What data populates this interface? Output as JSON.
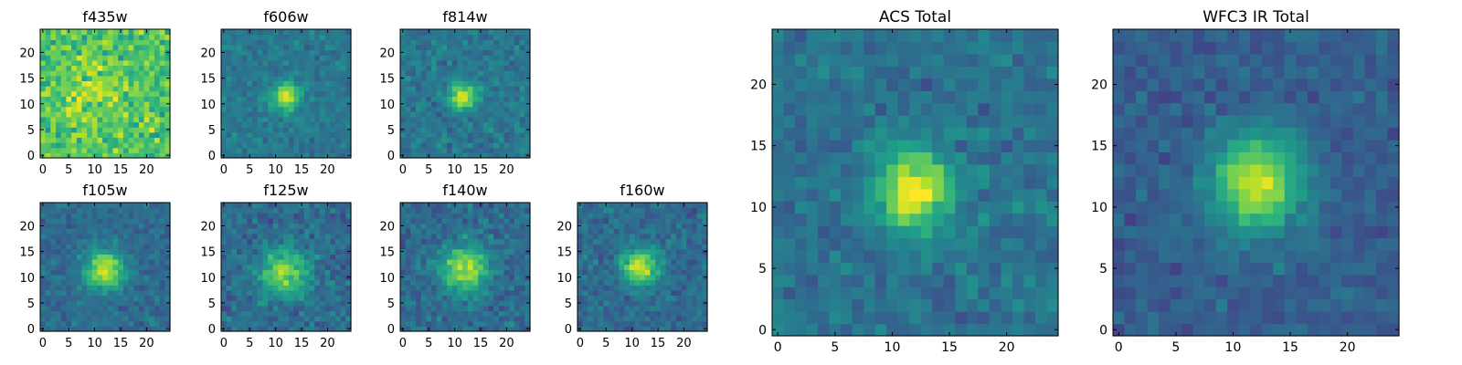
{
  "chart_data": [
    {
      "type": "heatmap",
      "title": "f435w",
      "grid": [
        25,
        25
      ],
      "xlim": [
        -0.5,
        24.5
      ],
      "ylim": [
        -0.5,
        24.5
      ],
      "xticks": [
        0,
        5,
        10,
        15,
        20
      ],
      "yticks": [
        0,
        5,
        10,
        15,
        20
      ],
      "model": {
        "center": [
          11,
          12
        ],
        "sigma": 4,
        "peak": 0.15,
        "background": 0.72,
        "noise": 0.13
      },
      "colormap": "viridis"
    },
    {
      "type": "heatmap",
      "title": "f606w",
      "grid": [
        25,
        25
      ],
      "xlim": [
        -0.5,
        24.5
      ],
      "ylim": [
        -0.5,
        24.5
      ],
      "xticks": [
        0,
        5,
        10,
        15,
        20
      ],
      "yticks": [
        0,
        5,
        10,
        15,
        20
      ],
      "model": {
        "center": [
          12,
          11.5
        ],
        "sigma": 1.8,
        "peak": 0.55,
        "background": 0.4,
        "noise": 0.07
      },
      "colormap": "viridis"
    },
    {
      "type": "heatmap",
      "title": "f814w",
      "grid": [
        25,
        25
      ],
      "xlim": [
        -0.5,
        24.5
      ],
      "ylim": [
        -0.5,
        24.5
      ],
      "xticks": [
        0,
        5,
        10,
        15,
        20
      ],
      "yticks": [
        0,
        5,
        10,
        15,
        20
      ],
      "model": {
        "center": [
          11.5,
          11.5
        ],
        "sigma": 1.8,
        "peak": 0.55,
        "background": 0.4,
        "noise": 0.08
      },
      "colormap": "viridis"
    },
    {
      "type": "heatmap",
      "title": "f105w",
      "grid": [
        25,
        25
      ],
      "xlim": [
        -0.5,
        24.5
      ],
      "ylim": [
        -0.5,
        24.5
      ],
      "xticks": [
        0,
        5,
        10,
        15,
        20
      ],
      "yticks": [
        0,
        5,
        10,
        15,
        20
      ],
      "model": {
        "center": [
          12,
          11.5
        ],
        "sigma": 2.6,
        "peak": 0.6,
        "background": 0.35,
        "noise": 0.07
      },
      "colormap": "viridis"
    },
    {
      "type": "heatmap",
      "title": "f125w",
      "grid": [
        25,
        25
      ],
      "xlim": [
        -0.5,
        24.5
      ],
      "ylim": [
        -0.5,
        24.5
      ],
      "xticks": [
        0,
        5,
        10,
        15,
        20
      ],
      "yticks": [
        0,
        5,
        10,
        15,
        20
      ],
      "model": {
        "center": [
          11.5,
          11
        ],
        "sigma": 3.2,
        "peak": 0.5,
        "background": 0.35,
        "noise": 0.09
      },
      "colormap": "viridis"
    },
    {
      "type": "heatmap",
      "title": "f140w",
      "grid": [
        25,
        25
      ],
      "xlim": [
        -0.5,
        24.5
      ],
      "ylim": [
        -0.5,
        24.5
      ],
      "xticks": [
        0,
        5,
        10,
        15,
        20
      ],
      "yticks": [
        0,
        5,
        10,
        15,
        20
      ],
      "model": {
        "center": [
          12,
          11.5
        ],
        "sigma": 3.2,
        "peak": 0.52,
        "background": 0.35,
        "noise": 0.09
      },
      "colormap": "viridis"
    },
    {
      "type": "heatmap",
      "title": "f160w",
      "grid": [
        25,
        25
      ],
      "xlim": [
        -0.5,
        24.5
      ],
      "ylim": [
        -0.5,
        24.5
      ],
      "xticks": [
        0,
        5,
        10,
        15,
        20
      ],
      "yticks": [
        0,
        5,
        10,
        15,
        20
      ],
      "model": {
        "center": [
          11.5,
          12
        ],
        "sigma": 2.4,
        "peak": 0.6,
        "background": 0.35,
        "noise": 0.08
      },
      "colormap": "viridis"
    },
    {
      "type": "heatmap",
      "title": "ACS Total",
      "grid": [
        25,
        25
      ],
      "xlim": [
        -0.5,
        24.5
      ],
      "ylim": [
        -0.5,
        24.5
      ],
      "xticks": [
        0,
        5,
        10,
        15,
        20
      ],
      "yticks": [
        0,
        5,
        10,
        15,
        20
      ],
      "model": {
        "center": [
          12,
          11.5
        ],
        "sigma": 2.3,
        "peak": 0.6,
        "background": 0.38,
        "noise": 0.08
      },
      "colormap": "viridis"
    },
    {
      "type": "heatmap",
      "title": "WFC3 IR Total",
      "grid": [
        25,
        25
      ],
      "xlim": [
        -0.5,
        24.5
      ],
      "ylim": [
        -0.5,
        24.5
      ],
      "xticks": [
        0,
        5,
        10,
        15,
        20
      ],
      "yticks": [
        0,
        5,
        10,
        15,
        20
      ],
      "model": {
        "center": [
          12,
          12
        ],
        "sigma": 2.8,
        "peak": 0.62,
        "background": 0.3,
        "noise": 0.06
      },
      "colormap": "viridis"
    }
  ]
}
